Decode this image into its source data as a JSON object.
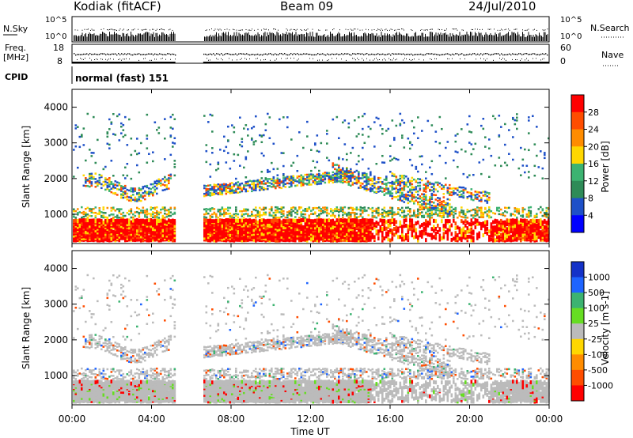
{
  "header": {
    "station": "Kodiak (fitACF)",
    "beam": "Beam 09",
    "date": "24/Jul/2010"
  },
  "top_panels": {
    "nsky_label": "N.Sky",
    "nsky_ticks": [
      "10^5",
      "10^0"
    ],
    "nsearch_label": "N.Search",
    "nsearch_ticks": [
      "10^5",
      "10^0"
    ],
    "freq_label_1": "Freq.",
    "freq_label_2": "[MHz]",
    "freq_ticks": [
      "18",
      "8"
    ],
    "nave_label": "Nave",
    "nave_ticks": [
      "60",
      "0"
    ],
    "cpid_label": "CPID",
    "cpid_value": "normal (fast) 151"
  },
  "chart_data": [
    {
      "type": "heatmap",
      "name": "power",
      "ylabel": "Slant Range [km]",
      "y_ticks": [
        "4000",
        "3000",
        "2000",
        "1000"
      ],
      "ylim": [
        180,
        4500
      ],
      "xlim_hours": [
        0,
        24
      ],
      "data_gap_hours": [
        5.2,
        6.6
      ],
      "colorbar_label": "Power [dB]",
      "colorbar_ticks": [
        "28",
        "24",
        "20",
        "16",
        "12",
        "8",
        "4"
      ],
      "colorbar_colors": [
        "#ff0000",
        "#ff4d00",
        "#ff8c00",
        "#ffd700",
        "#3cb371",
        "#2e8b57",
        "#1e50c8",
        "#0000ff"
      ]
    },
    {
      "type": "heatmap",
      "name": "velocity",
      "ylabel": "Slant Range [km]",
      "y_ticks": [
        "4000",
        "3000",
        "2000",
        "1000"
      ],
      "ylim": [
        180,
        4500
      ],
      "xlim_hours": [
        0,
        24
      ],
      "data_gap_hours": [
        5.2,
        6.6
      ],
      "colorbar_label": "Velocity [m s-1]",
      "colorbar_ticks": [
        "1000",
        "500",
        "100",
        "25",
        "-25",
        "-100",
        "-500",
        "-1000"
      ],
      "colorbar_colors": [
        "#1432c8",
        "#1e64ff",
        "#3cb371",
        "#66dd22",
        "#bbbbbb",
        "#ffd700",
        "#ff8c00",
        "#ff4d00",
        "#ff0000"
      ]
    }
  ],
  "x_axis": {
    "ticks": [
      "00:00",
      "04:00",
      "08:00",
      "12:00",
      "16:00",
      "20:00",
      "00:00"
    ],
    "label": "Time UT"
  }
}
